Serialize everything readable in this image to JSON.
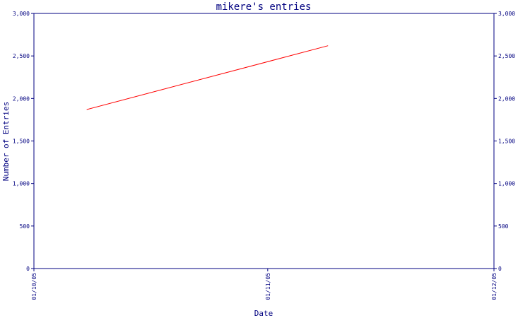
{
  "colors": {
    "axis": "#000080",
    "text": "#000080",
    "series": "#ff0000",
    "background": "#ffffff"
  },
  "chart_data": {
    "type": "line",
    "title": "mikere's entries",
    "xlabel": "Date",
    "ylabel": "Number of Entries",
    "ylim": [
      0,
      3000
    ],
    "y_ticks": [
      0,
      500,
      1000,
      1500,
      2000,
      2500,
      3000
    ],
    "y_tick_labels": [
      "0",
      "500",
      "1,000",
      "1,500",
      "2,000",
      "2,500",
      "3,000"
    ],
    "x_range": [
      "2005-10-01",
      "2005-12-01"
    ],
    "x_ticks": [
      "2005-10-01",
      "2005-11-01",
      "2005-12-01"
    ],
    "x_tick_labels": [
      "01/10/05",
      "01/11/05",
      "01/12/05"
    ],
    "grid": false,
    "legend": "none",
    "series": [
      {
        "points": [
          {
            "x": "2005-10-08",
            "y": 1870
          },
          {
            "x": "2005-11-09",
            "y": 2620
          }
        ]
      }
    ]
  }
}
